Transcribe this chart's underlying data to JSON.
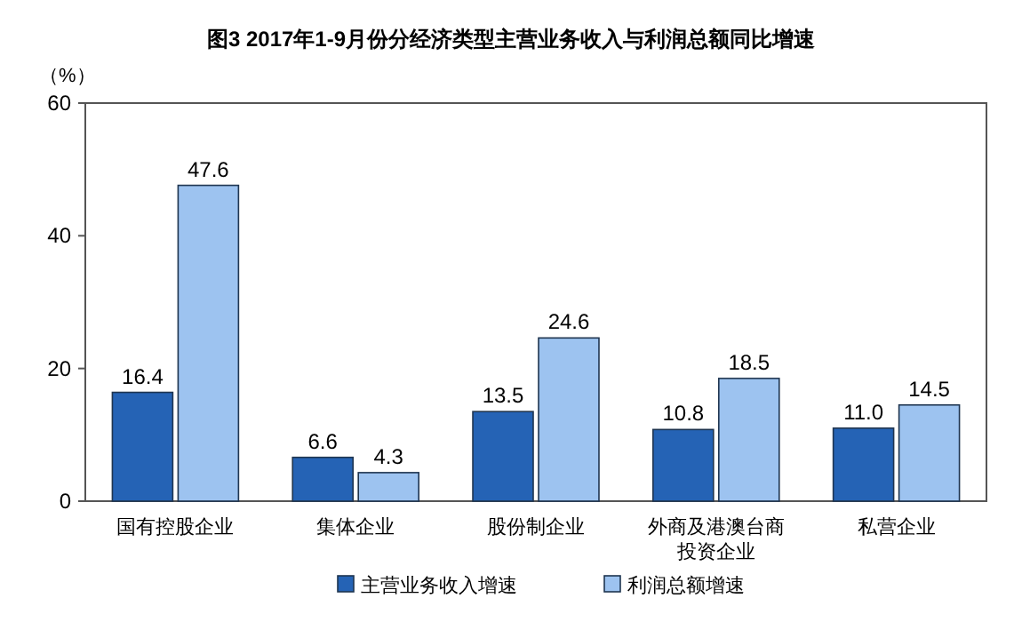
{
  "chart_data": {
    "type": "bar",
    "title": "图3 2017年1-9月份分经济类型主营业务收入与利润总额同比增速",
    "ylabel": "（%）",
    "categories": [
      "国有控股企业",
      "集体企业",
      "股份制企业",
      "外商及港澳台商投资企业",
      "私营企业"
    ],
    "series": [
      {
        "name": "主营业务收入增速",
        "color": "#2563b5",
        "values": [
          16.4,
          6.6,
          13.5,
          10.8,
          11.0
        ]
      },
      {
        "name": "利润总额增速",
        "color": "#9dc3f0",
        "values": [
          47.6,
          4.3,
          24.6,
          18.5,
          14.5
        ]
      }
    ],
    "value_labels": [
      [
        "16.4",
        "6.6",
        "13.5",
        "10.8",
        "11.0"
      ],
      [
        "47.6",
        "4.3",
        "24.6",
        "18.5",
        "14.5"
      ]
    ],
    "ylim": [
      0,
      60
    ],
    "yticks": [
      0,
      20,
      40,
      60
    ],
    "grid": false,
    "legend": "bottom"
  }
}
